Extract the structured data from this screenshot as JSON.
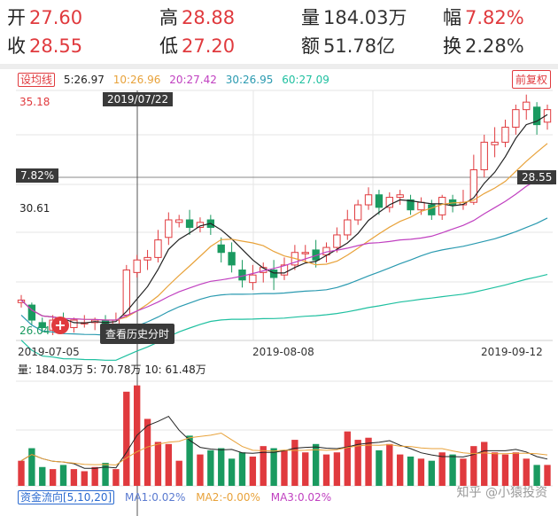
{
  "quote": {
    "open": {
      "label": "开",
      "value": "27.60"
    },
    "high": {
      "label": "高",
      "value": "28.88"
    },
    "volume": {
      "label": "量",
      "value": "184.03万"
    },
    "range": {
      "label": "幅",
      "value": "7.82%"
    },
    "close": {
      "label": "收",
      "value": "28.55"
    },
    "low": {
      "label": "低",
      "value": "27.20"
    },
    "amount": {
      "label": "额",
      "value": "51.78亿"
    },
    "turnover": {
      "label": "换",
      "value": "2.28%"
    }
  },
  "ma_bar": {
    "setting_label": "设均线",
    "ma5": "5:26.97",
    "ma10": "10:26.96",
    "ma20": "20:27.42",
    "ma30": "30:26.95",
    "ma60": "60:27.09",
    "adjust_label": "前复权"
  },
  "y_labels": {
    "top": "35.18",
    "pct": "7.82%",
    "mid": "30.61",
    "bottom": "26.04",
    "price_tag": "28.55"
  },
  "cursor_date": "2019/07/22",
  "x_labels": [
    "2019-07-05",
    "2019-08-08",
    "2019-09-12"
  ],
  "history_button": "查看历史分时",
  "volume_info": "量: 184.03万  5: 70.78万  10: 61.48万",
  "bottom_bar": {
    "fund_flow": "资金流向[5,10,20]",
    "ma1": "MA1:0.02%",
    "ma2": "MA2:-0.00%",
    "ma3": "MA3:0.02%"
  },
  "watermark": "知乎 @小猿投资",
  "colors": {
    "up": "#e03a3e",
    "down": "#1a9a60",
    "ma5": "#222222",
    "ma10": "#e8a23a",
    "ma20": "#c040c0",
    "ma30": "#2a9ab0",
    "ma60": "#1fc0a0"
  }
}
